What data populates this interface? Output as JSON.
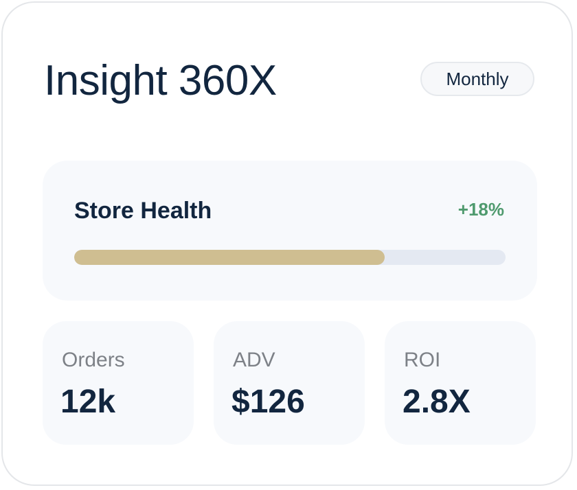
{
  "card": {
    "title": "Insight 360X",
    "period_button": "Monthly"
  },
  "store_health": {
    "label": "Store Health",
    "change": "+18%",
    "progress_fraction": 0.72
  },
  "stats": [
    {
      "label": "Orders",
      "value": "12k"
    },
    {
      "label": "ADV",
      "value": "$126"
    },
    {
      "label": "ROI",
      "value": "2.8X"
    }
  ],
  "colors": {
    "primary_text": "#12263f",
    "positive": "#4f9a6e",
    "progress_fill": "#cfbe91",
    "progress_track": "#e4e9f2",
    "muted_text": "#7d8187"
  }
}
